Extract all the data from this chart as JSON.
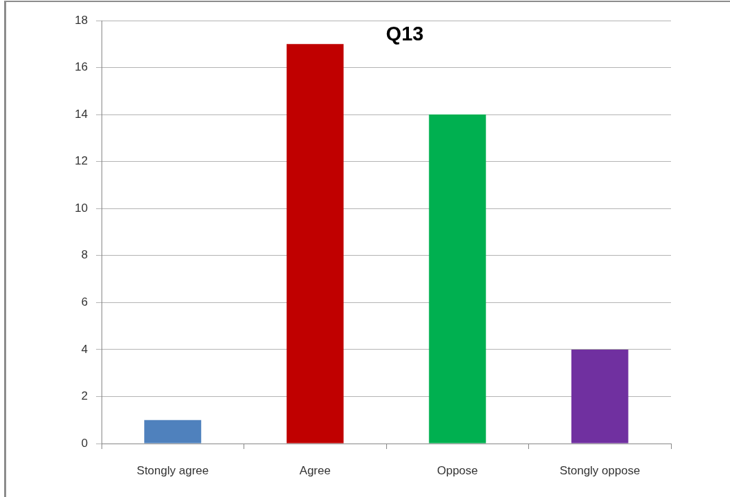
{
  "chart_data": {
    "type": "bar",
    "title": "Q13",
    "categories": [
      "Stongly agree",
      "Agree",
      "Oppose",
      "Stongly oppose"
    ],
    "values": [
      1,
      17,
      14,
      4
    ],
    "colors": [
      "#4f81bd",
      "#c00000",
      "#00b050",
      "#7030a0"
    ],
    "ylim": [
      0,
      18
    ],
    "yticks": [
      0,
      2,
      4,
      6,
      8,
      10,
      12,
      14,
      16,
      18
    ],
    "grid": "y"
  }
}
